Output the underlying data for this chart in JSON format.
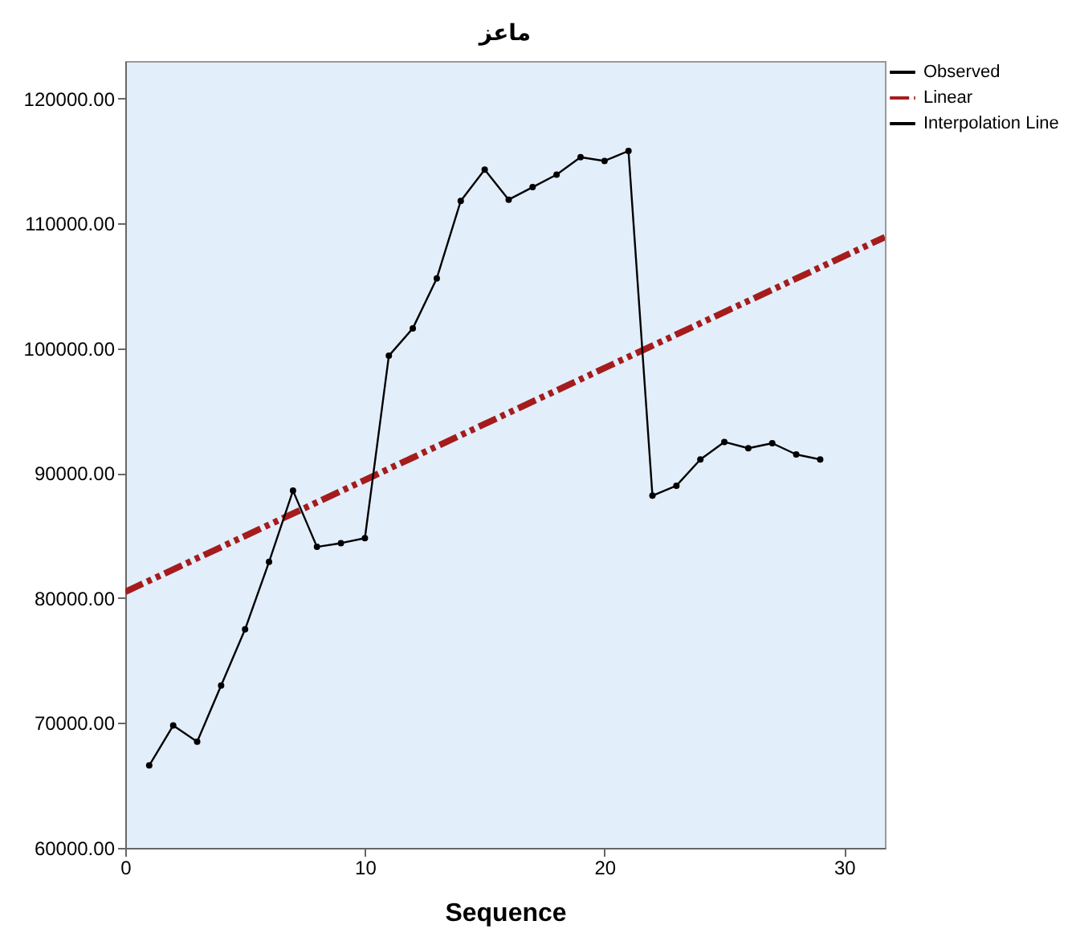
{
  "chart_data": {
    "type": "line",
    "title": "ماعز",
    "xlabel": "Sequence",
    "xlim": [
      0,
      31.7
    ],
    "xticks": [
      0,
      10,
      20,
      30
    ],
    "ylim": [
      60000,
      123000
    ],
    "yticks": [
      {
        "value": 60000,
        "label": "60000.00"
      },
      {
        "value": 70000,
        "label": "70000.00"
      },
      {
        "value": 80000,
        "label": "80000.00"
      },
      {
        "value": 90000,
        "label": "90000.00"
      },
      {
        "value": 100000,
        "label": "100000.00"
      },
      {
        "value": 110000,
        "label": "110000.00"
      },
      {
        "value": 120000,
        "label": "120000.00"
      }
    ],
    "grid": false,
    "legend": "top right",
    "series": [
      {
        "name": "Observed",
        "type": "scatter",
        "marker": "circle",
        "color": "#000000",
        "x": [
          1,
          2,
          3,
          4,
          5,
          6,
          7,
          8,
          9,
          10,
          11,
          12,
          13,
          14,
          15,
          16,
          17,
          18,
          19,
          20,
          21,
          22,
          23,
          24,
          25,
          26,
          27,
          28,
          29
        ],
        "values": [
          66600,
          69800,
          68500,
          73000,
          77500,
          82900,
          88600,
          84100,
          84400,
          84800,
          99400,
          101600,
          105600,
          111800,
          114300,
          111900,
          112900,
          113900,
          115300,
          115000,
          115800,
          88200,
          89000,
          91100,
          92500,
          92000,
          92400,
          91500,
          91100
        ]
      },
      {
        "name": "Linear",
        "type": "line",
        "line_style": "dashed",
        "color": "#a51c1c",
        "x": [
          0,
          31.7
        ],
        "values": [
          80500,
          108900
        ]
      },
      {
        "name": "Interpolation Line",
        "line_style": "solid",
        "color": "#000000",
        "x": [
          1,
          2,
          3,
          4,
          5,
          6,
          7,
          8,
          9,
          10,
          11,
          12,
          13,
          14,
          15,
          16,
          17,
          18,
          19,
          20,
          21,
          22,
          23,
          24,
          25,
          26,
          27,
          28,
          29
        ],
        "values": [
          66600,
          69800,
          68500,
          73000,
          77500,
          82900,
          88600,
          84100,
          84400,
          84800,
          99400,
          101600,
          105600,
          111800,
          114300,
          111900,
          112900,
          113900,
          115300,
          115000,
          115800,
          88200,
          89000,
          91100,
          92500,
          92000,
          92400,
          91500,
          91100
        ]
      }
    ]
  }
}
